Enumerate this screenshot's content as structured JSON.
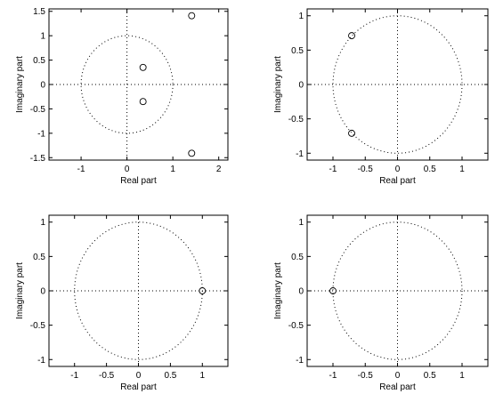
{
  "chart_data": [
    {
      "type": "scatter",
      "marker": "circle-open",
      "xlabel": "Real part",
      "ylabel": "Imaginary part",
      "xlim": [
        -1.7,
        2.2
      ],
      "ylim": [
        -1.55,
        1.55
      ],
      "xticks": [
        -1,
        0,
        1,
        2
      ],
      "yticks": [
        -1.5,
        -1,
        -0.5,
        0,
        0.5,
        1,
        1.5
      ],
      "xtick_labels": [
        "-1",
        "0",
        "1",
        "2"
      ],
      "ytick_labels": [
        "-1.5",
        "-1",
        "-0.5",
        "0",
        "0.5",
        "1",
        "1.5"
      ],
      "unit_circle": true,
      "points": [
        {
          "x": 1.41,
          "y": 1.41
        },
        {
          "x": 1.41,
          "y": -1.41
        },
        {
          "x": 0.35,
          "y": 0.35
        },
        {
          "x": 0.35,
          "y": -0.35
        }
      ]
    },
    {
      "type": "scatter",
      "marker": "circle-open",
      "xlabel": "Real part",
      "ylabel": "Imaginary part",
      "xlim": [
        -1.4,
        1.4
      ],
      "ylim": [
        -1.1,
        1.1
      ],
      "xticks": [
        -1,
        -0.5,
        0,
        0.5,
        1
      ],
      "yticks": [
        -1,
        -0.5,
        0,
        0.5,
        1
      ],
      "xtick_labels": [
        "-1",
        "-0.5",
        "0",
        "0.5",
        "1"
      ],
      "ytick_labels": [
        "-1",
        "-0.5",
        "0",
        "0.5",
        "1"
      ],
      "unit_circle": true,
      "points": [
        {
          "x": -0.71,
          "y": 0.71
        },
        {
          "x": -0.71,
          "y": -0.71
        }
      ]
    },
    {
      "type": "scatter",
      "marker": "circle-open",
      "xlabel": "Real part",
      "ylabel": "Imaginary part",
      "xlim": [
        -1.4,
        1.4
      ],
      "ylim": [
        -1.1,
        1.1
      ],
      "xticks": [
        -1,
        -0.5,
        0,
        0.5,
        1
      ],
      "yticks": [
        -1,
        -0.5,
        0,
        0.5,
        1
      ],
      "xtick_labels": [
        "-1",
        "-0.5",
        "0",
        "0.5",
        "1"
      ],
      "ytick_labels": [
        "-1",
        "-0.5",
        "0",
        "0.5",
        "1"
      ],
      "unit_circle": true,
      "points": [
        {
          "x": 1,
          "y": 0
        }
      ]
    },
    {
      "type": "scatter",
      "marker": "circle-open",
      "xlabel": "Real part",
      "ylabel": "Imaginary part",
      "xlim": [
        -1.4,
        1.4
      ],
      "ylim": [
        -1.1,
        1.1
      ],
      "xticks": [
        -1,
        -0.5,
        0,
        0.5,
        1
      ],
      "yticks": [
        -1,
        -0.5,
        0,
        0.5,
        1
      ],
      "xtick_labels": [
        "-1",
        "-0.5",
        "0",
        "0.5",
        "1"
      ],
      "ytick_labels": [
        "-1",
        "-0.5",
        "0",
        "0.5",
        "1"
      ],
      "unit_circle": true,
      "points": [
        {
          "x": -1,
          "y": 0
        }
      ]
    }
  ]
}
